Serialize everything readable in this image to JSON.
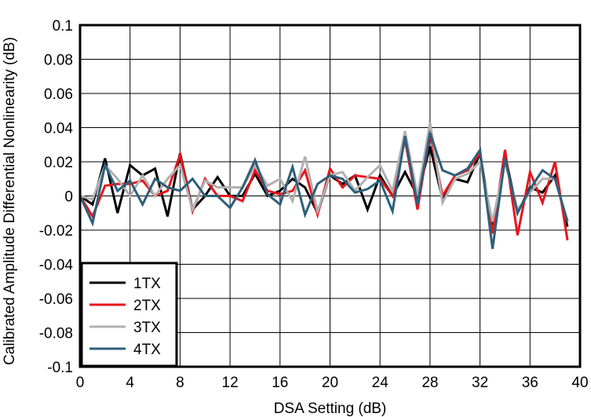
{
  "chart_data": {
    "type": "line",
    "title": "",
    "xlabel": "DSA Setting (dB)",
    "ylabel": "Calibrated Amplitude Differential Nonlinearity (dB)",
    "xlim": [
      0,
      40
    ],
    "ylim": [
      -0.1,
      0.1
    ],
    "xticks": [
      0,
      4,
      8,
      12,
      16,
      20,
      24,
      28,
      32,
      36,
      40
    ],
    "yticks": [
      -0.1,
      -0.08,
      -0.06,
      -0.04,
      -0.02,
      0,
      0.02,
      0.04,
      0.06,
      0.08,
      0.1
    ],
    "xtick_labels": [
      "0",
      "4",
      "8",
      "12",
      "16",
      "20",
      "24",
      "28",
      "32",
      "36",
      "40"
    ],
    "ytick_labels": [
      "-0.1",
      "-0.08",
      "-0.06",
      "-0.04",
      "-0.02",
      "0",
      "0.02",
      "0.04",
      "0.06",
      "0.08",
      "0.1"
    ],
    "grid": true,
    "legend_position": "bottom-left",
    "x": [
      0,
      1,
      2,
      3,
      4,
      5,
      6,
      7,
      8,
      9,
      10,
      11,
      12,
      13,
      14,
      15,
      16,
      17,
      18,
      19,
      20,
      21,
      22,
      23,
      24,
      25,
      26,
      27,
      28,
      29,
      30,
      31,
      32,
      33,
      34,
      35,
      36,
      37,
      38,
      39
    ],
    "series": [
      {
        "name": "1TX",
        "color": "#000000",
        "values": [
          0,
          -0.005,
          0.022,
          -0.01,
          0.018,
          0.012,
          0.016,
          -0.012,
          0.025,
          -0.008,
          0.0,
          0.011,
          0.0,
          0.0,
          0.013,
          0.0,
          0.003,
          0.01,
          0.005,
          -0.01,
          0.012,
          0.007,
          0.012,
          -0.008,
          0.012,
          0.0,
          0.014,
          0.0,
          0.029,
          -0.002,
          0.01,
          0.008,
          0.025,
          -0.02,
          0.024,
          -0.01,
          0.005,
          0.002,
          0.012,
          -0.018
        ]
      },
      {
        "name": "2TX",
        "color": "#e8141c",
        "values": [
          0,
          -0.012,
          0.006,
          0.007,
          0.007,
          0.009,
          0.0,
          0.003,
          0.024,
          -0.009,
          0.01,
          0.0,
          0.0,
          -0.003,
          0.015,
          0.003,
          0.001,
          0.003,
          0.015,
          -0.011,
          0.016,
          0.005,
          0.012,
          0.011,
          0.01,
          0.0,
          0.033,
          -0.008,
          0.037,
          0.0,
          0.012,
          0.015,
          0.025,
          -0.022,
          0.027,
          -0.023,
          0.014,
          -0.004,
          0.02,
          -0.026
        ]
      },
      {
        "name": "3TX",
        "color": "#b1b1b1",
        "values": [
          0,
          -0.002,
          0.018,
          0.01,
          0.0,
          0.012,
          0.0,
          0.01,
          0.018,
          -0.008,
          0.009,
          0.005,
          0.005,
          0.005,
          0.018,
          0.006,
          0.01,
          -0.003,
          0.023,
          -0.009,
          0.012,
          0.014,
          0.003,
          0.011,
          0.018,
          0.003,
          0.038,
          0.0,
          0.043,
          -0.004,
          0.01,
          0.013,
          0.02,
          -0.015,
          0.02,
          -0.008,
          0.002,
          0.01,
          0.01,
          -0.015
        ]
      },
      {
        "name": "4TX",
        "color": "#2d5f7a",
        "values": [
          0,
          -0.016,
          0.018,
          0.003,
          0.009,
          -0.005,
          0.01,
          0.005,
          0.003,
          0.01,
          0.0,
          0.0,
          -0.007,
          0.005,
          0.021,
          0.001,
          -0.005,
          0.017,
          -0.011,
          0.007,
          0.012,
          0.01,
          0.002,
          0.004,
          0.009,
          -0.009,
          0.035,
          -0.005,
          0.037,
          0.015,
          0.012,
          0.016,
          0.027,
          -0.031,
          0.022,
          -0.01,
          0.004,
          0.015,
          0.01,
          -0.015
        ]
      }
    ]
  }
}
